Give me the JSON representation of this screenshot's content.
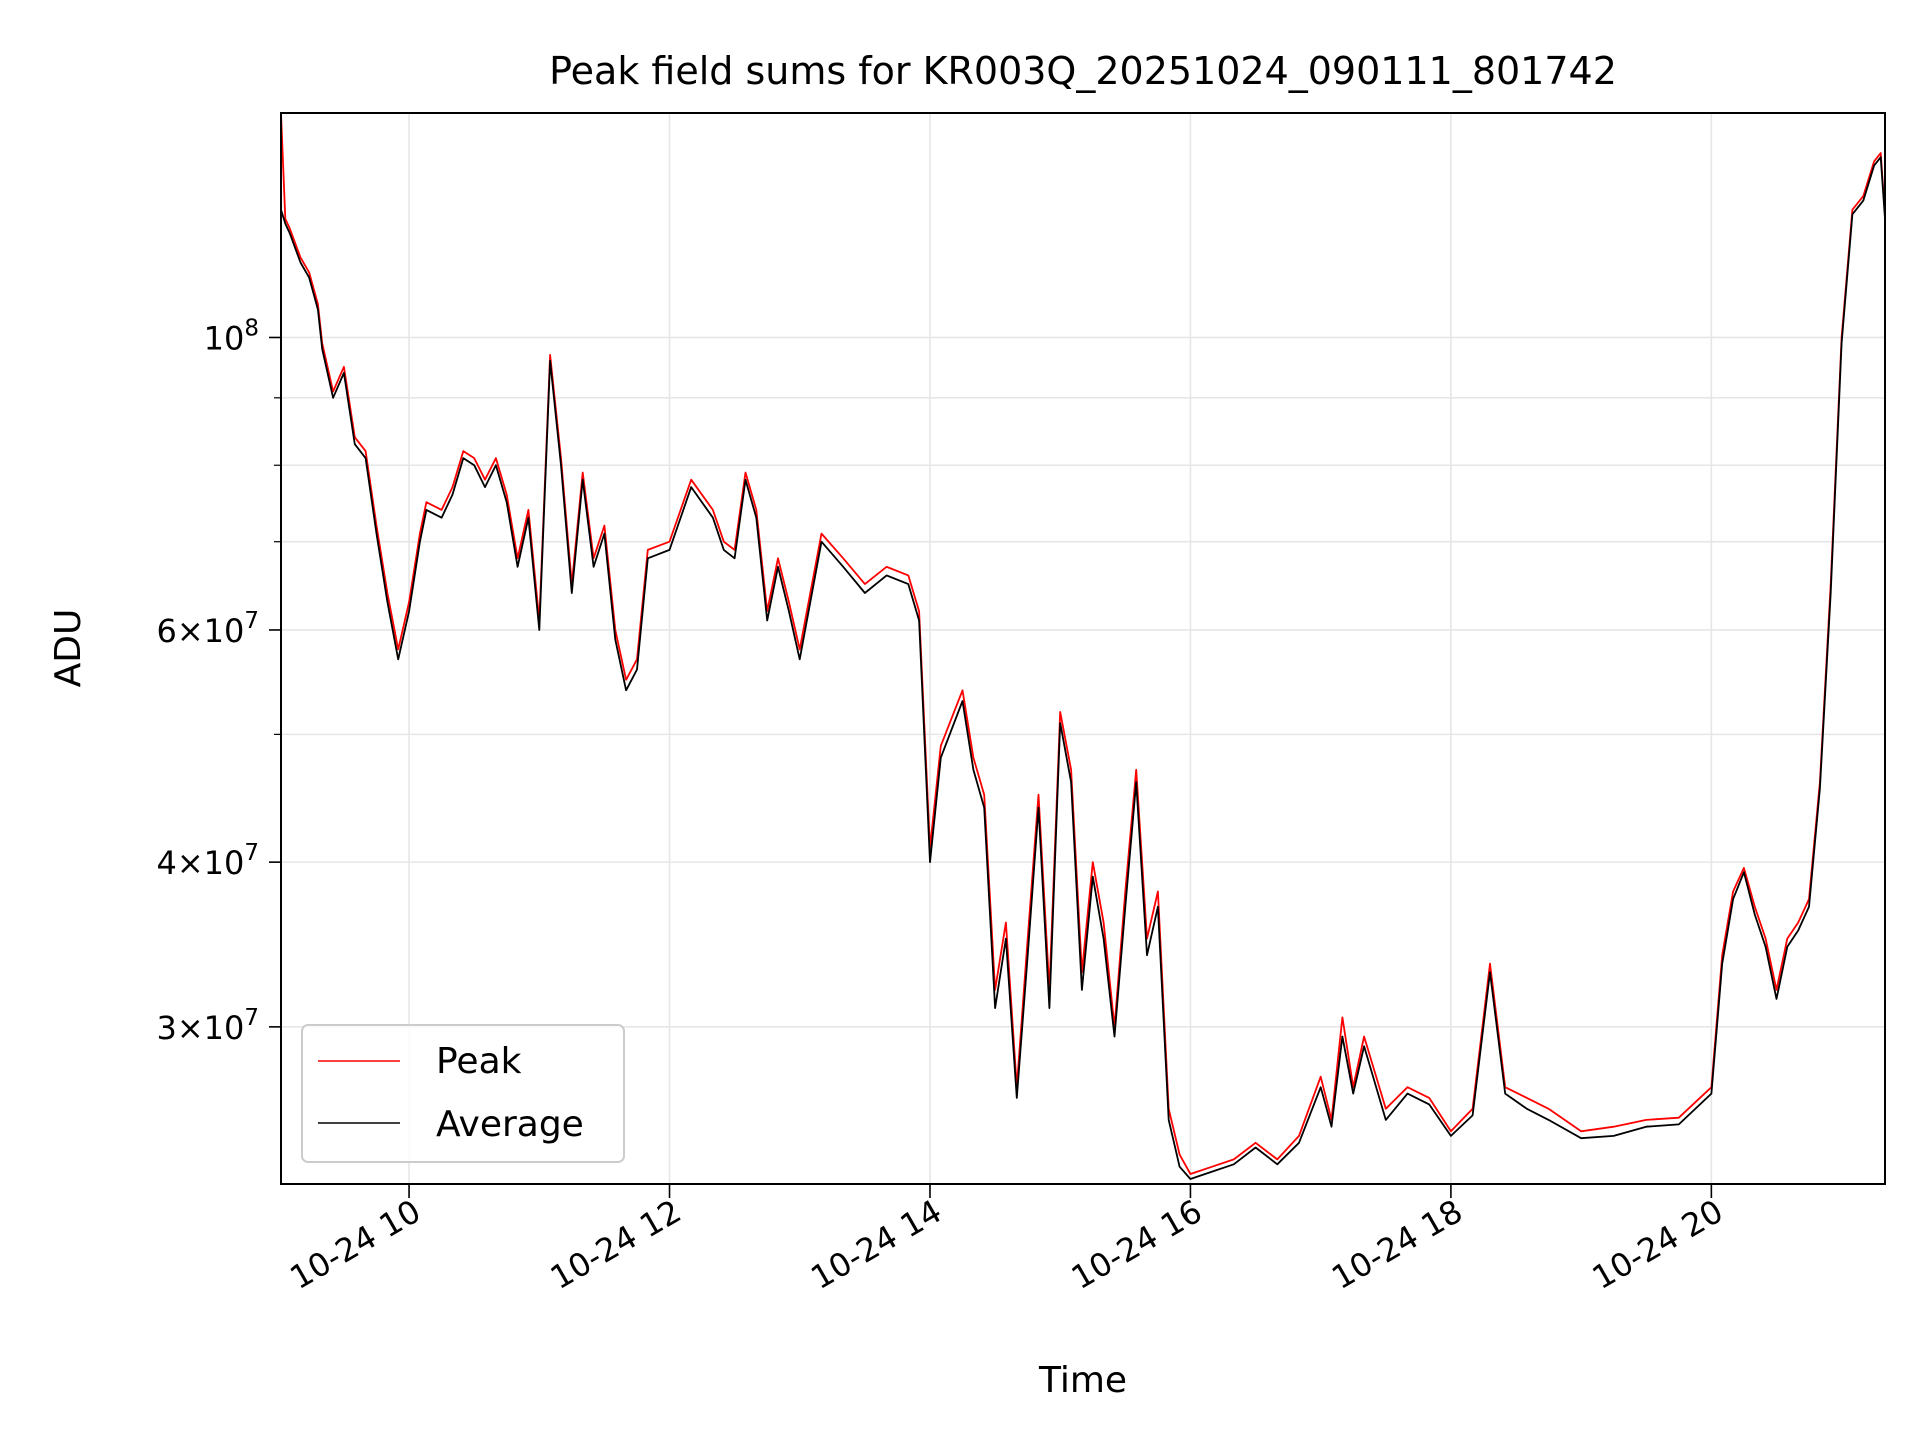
{
  "chart_data": {
    "type": "line",
    "title": "Peak field sums for KR003Q_20251024_090111_801742",
    "xlabel": "Time",
    "ylabel": "ADU",
    "yscale": "log",
    "xlim": [
      "2025-10-24 09:01",
      "2025-10-24 21:20"
    ],
    "ylim": [
      22800000,
      148000000
    ],
    "grid": true,
    "legend_position": "lower-left",
    "x_ticks": [
      {
        "t": "2025-10-24 10:00",
        "label": "10-24 10"
      },
      {
        "t": "2025-10-24 12:00",
        "label": "10-24 12"
      },
      {
        "t": "2025-10-24 14:00",
        "label": "10-24 14"
      },
      {
        "t": "2025-10-24 16:00",
        "label": "10-24 16"
      },
      {
        "t": "2025-10-24 18:00",
        "label": "10-24 18"
      },
      {
        "t": "2025-10-24 20:00",
        "label": "10-24 20"
      }
    ],
    "y_ticks": [
      {
        "value": 30000000,
        "mantissa": "3",
        "exponent": "7"
      },
      {
        "value": 40000000,
        "mantissa": "4",
        "exponent": "7"
      },
      {
        "value": 60000000,
        "mantissa": "6",
        "exponent": "7"
      },
      {
        "value": 100000000,
        "mantissa": "",
        "exponent": "8"
      }
    ],
    "y_minor_ticks": [
      50000000,
      70000000,
      80000000,
      90000000
    ],
    "series": [
      {
        "name": "Peak",
        "color": "#ff0000",
        "x": [
          "2025-10-24 09:01",
          "2025-10-24 09:03",
          "2025-10-24 09:05",
          "2025-10-24 09:10",
          "2025-10-24 09:14",
          "2025-10-24 09:18",
          "2025-10-24 09:20",
          "2025-10-24 09:25",
          "2025-10-24 09:30",
          "2025-10-24 09:35",
          "2025-10-24 09:40",
          "2025-10-24 09:45",
          "2025-10-24 09:50",
          "2025-10-24 09:55",
          "2025-10-24 10:00",
          "2025-10-24 10:05",
          "2025-10-24 10:08",
          "2025-10-24 10:15",
          "2025-10-24 10:20",
          "2025-10-24 10:25",
          "2025-10-24 10:30",
          "2025-10-24 10:35",
          "2025-10-24 10:40",
          "2025-10-24 10:45",
          "2025-10-24 10:50",
          "2025-10-24 10:55",
          "2025-10-24 11:00",
          "2025-10-24 11:05",
          "2025-10-24 11:10",
          "2025-10-24 11:15",
          "2025-10-24 11:20",
          "2025-10-24 11:25",
          "2025-10-24 11:30",
          "2025-10-24 11:35",
          "2025-10-24 11:40",
          "2025-10-24 11:45",
          "2025-10-24 11:50",
          "2025-10-24 12:00",
          "2025-10-24 12:10",
          "2025-10-24 12:20",
          "2025-10-24 12:25",
          "2025-10-24 12:30",
          "2025-10-24 12:35",
          "2025-10-24 12:40",
          "2025-10-24 12:45",
          "2025-10-24 12:50",
          "2025-10-24 12:55",
          "2025-10-24 13:00",
          "2025-10-24 13:10",
          "2025-10-24 13:20",
          "2025-10-24 13:30",
          "2025-10-24 13:40",
          "2025-10-24 13:50",
          "2025-10-24 13:55",
          "2025-10-24 14:00",
          "2025-10-24 14:05",
          "2025-10-24 14:15",
          "2025-10-24 14:20",
          "2025-10-24 14:25",
          "2025-10-24 14:30",
          "2025-10-24 14:35",
          "2025-10-24 14:40",
          "2025-10-24 14:45",
          "2025-10-24 14:50",
          "2025-10-24 14:55",
          "2025-10-24 15:00",
          "2025-10-24 15:05",
          "2025-10-24 15:10",
          "2025-10-24 15:15",
          "2025-10-24 15:20",
          "2025-10-24 15:25",
          "2025-10-24 15:30",
          "2025-10-24 15:35",
          "2025-10-24 15:40",
          "2025-10-24 15:45",
          "2025-10-24 15:50",
          "2025-10-24 15:55",
          "2025-10-24 16:00",
          "2025-10-24 16:10",
          "2025-10-24 16:20",
          "2025-10-24 16:30",
          "2025-10-24 16:40",
          "2025-10-24 16:50",
          "2025-10-24 17:00",
          "2025-10-24 17:05",
          "2025-10-24 17:10",
          "2025-10-24 17:15",
          "2025-10-24 17:20",
          "2025-10-24 17:30",
          "2025-10-24 17:40",
          "2025-10-24 17:50",
          "2025-10-24 18:00",
          "2025-10-24 18:10",
          "2025-10-24 18:18",
          "2025-10-24 18:25",
          "2025-10-24 18:35",
          "2025-10-24 18:45",
          "2025-10-24 19:00",
          "2025-10-24 19:15",
          "2025-10-24 19:30",
          "2025-10-24 19:45",
          "2025-10-24 20:00",
          "2025-10-24 20:05",
          "2025-10-24 20:10",
          "2025-10-24 20:15",
          "2025-10-24 20:20",
          "2025-10-24 20:25",
          "2025-10-24 20:30",
          "2025-10-24 20:35",
          "2025-10-24 20:40",
          "2025-10-24 20:45",
          "2025-10-24 20:50",
          "2025-10-24 20:55",
          "2025-10-24 21:00",
          "2025-10-24 21:05",
          "2025-10-24 21:10",
          "2025-10-24 21:15",
          "2025-10-24 21:18",
          "2025-10-24 21:20"
        ],
        "values": [
          148000000,
          123000000,
          121000000,
          115000000,
          112000000,
          106000000,
          99000000,
          91000000,
          95000000,
          84000000,
          82000000,
          72000000,
          64000000,
          58000000,
          63000000,
          71000000,
          75000000,
          74000000,
          77000000,
          82000000,
          81000000,
          78000000,
          81000000,
          76000000,
          68000000,
          74000000,
          61000000,
          97000000,
          81000000,
          65000000,
          79000000,
          68000000,
          72000000,
          60000000,
          55000000,
          57000000,
          69000000,
          70000000,
          78000000,
          74000000,
          70000000,
          69000000,
          79000000,
          74000000,
          62000000,
          68000000,
          63000000,
          58000000,
          71000000,
          68000000,
          65000000,
          67000000,
          66000000,
          62000000,
          41000000,
          49000000,
          54000000,
          48000000,
          45000000,
          32000000,
          36000000,
          27000000,
          35000000,
          45000000,
          32000000,
          52000000,
          47000000,
          33000000,
          40000000,
          36000000,
          30000000,
          38000000,
          47000000,
          35000000,
          38000000,
          26000000,
          24000000,
          23200000,
          23500000,
          23800000,
          24500000,
          23800000,
          24800000,
          27500000,
          25500000,
          30500000,
          27000000,
          29500000,
          26000000,
          27000000,
          26500000,
          25000000,
          26000000,
          33500000,
          27000000,
          26500000,
          26000000,
          25000000,
          25200000,
          25500000,
          25600000,
          27000000,
          34000000,
          38000000,
          39600000,
          37000000,
          35000000,
          32000000,
          35000000,
          36000000,
          37500000,
          46000000,
          65000000,
          100000000,
          125000000,
          128000000,
          136000000,
          138000000,
          124000000
        ]
      },
      {
        "name": "Average",
        "color": "#000000",
        "x": [
          "2025-10-24 09:01",
          "2025-10-24 09:03",
          "2025-10-24 09:05",
          "2025-10-24 09:10",
          "2025-10-24 09:14",
          "2025-10-24 09:18",
          "2025-10-24 09:20",
          "2025-10-24 09:25",
          "2025-10-24 09:30",
          "2025-10-24 09:35",
          "2025-10-24 09:40",
          "2025-10-24 09:45",
          "2025-10-24 09:50",
          "2025-10-24 09:55",
          "2025-10-24 10:00",
          "2025-10-24 10:05",
          "2025-10-24 10:08",
          "2025-10-24 10:15",
          "2025-10-24 10:20",
          "2025-10-24 10:25",
          "2025-10-24 10:30",
          "2025-10-24 10:35",
          "2025-10-24 10:40",
          "2025-10-24 10:45",
          "2025-10-24 10:50",
          "2025-10-24 10:55",
          "2025-10-24 11:00",
          "2025-10-24 11:05",
          "2025-10-24 11:10",
          "2025-10-24 11:15",
          "2025-10-24 11:20",
          "2025-10-24 11:25",
          "2025-10-24 11:30",
          "2025-10-24 11:35",
          "2025-10-24 11:40",
          "2025-10-24 11:45",
          "2025-10-24 11:50",
          "2025-10-24 12:00",
          "2025-10-24 12:10",
          "2025-10-24 12:20",
          "2025-10-24 12:25",
          "2025-10-24 12:30",
          "2025-10-24 12:35",
          "2025-10-24 12:40",
          "2025-10-24 12:45",
          "2025-10-24 12:50",
          "2025-10-24 12:55",
          "2025-10-24 13:00",
          "2025-10-24 13:10",
          "2025-10-24 13:20",
          "2025-10-24 13:30",
          "2025-10-24 13:40",
          "2025-10-24 13:50",
          "2025-10-24 13:55",
          "2025-10-24 14:00",
          "2025-10-24 14:05",
          "2025-10-24 14:15",
          "2025-10-24 14:20",
          "2025-10-24 14:25",
          "2025-10-24 14:30",
          "2025-10-24 14:35",
          "2025-10-24 14:40",
          "2025-10-24 14:45",
          "2025-10-24 14:50",
          "2025-10-24 14:55",
          "2025-10-24 15:00",
          "2025-10-24 15:05",
          "2025-10-24 15:10",
          "2025-10-24 15:15",
          "2025-10-24 15:20",
          "2025-10-24 15:25",
          "2025-10-24 15:30",
          "2025-10-24 15:35",
          "2025-10-24 15:40",
          "2025-10-24 15:45",
          "2025-10-24 15:50",
          "2025-10-24 15:55",
          "2025-10-24 16:00",
          "2025-10-24 16:10",
          "2025-10-24 16:20",
          "2025-10-24 16:30",
          "2025-10-24 16:40",
          "2025-10-24 16:50",
          "2025-10-24 17:00",
          "2025-10-24 17:05",
          "2025-10-24 17:10",
          "2025-10-24 17:15",
          "2025-10-24 17:20",
          "2025-10-24 17:30",
          "2025-10-24 17:40",
          "2025-10-24 17:50",
          "2025-10-24 18:00",
          "2025-10-24 18:10",
          "2025-10-24 18:18",
          "2025-10-24 18:25",
          "2025-10-24 18:35",
          "2025-10-24 18:45",
          "2025-10-24 19:00",
          "2025-10-24 19:15",
          "2025-10-24 19:30",
          "2025-10-24 19:45",
          "2025-10-24 20:00",
          "2025-10-24 20:05",
          "2025-10-24 20:10",
          "2025-10-24 20:15",
          "2025-10-24 20:20",
          "2025-10-24 20:25",
          "2025-10-24 20:30",
          "2025-10-24 20:35",
          "2025-10-24 20:40",
          "2025-10-24 20:45",
          "2025-10-24 20:50",
          "2025-10-24 20:55",
          "2025-10-24 21:00",
          "2025-10-24 21:05",
          "2025-10-24 21:10",
          "2025-10-24 21:15",
          "2025-10-24 21:18",
          "2025-10-24 21:20"
        ],
        "values": [
          125000000,
          122000000,
          120000000,
          114000000,
          111000000,
          105000000,
          98000000,
          90000000,
          94000000,
          83000000,
          81000000,
          71000000,
          63000000,
          57000000,
          62000000,
          70000000,
          74000000,
          73000000,
          76000000,
          81000000,
          80000000,
          77000000,
          80000000,
          75000000,
          67000000,
          73000000,
          60000000,
          96000000,
          80000000,
          64000000,
          78000000,
          67000000,
          71000000,
          59000000,
          54000000,
          56000000,
          68000000,
          69000000,
          77000000,
          73000000,
          69000000,
          68000000,
          78000000,
          73000000,
          61000000,
          67000000,
          62000000,
          57000000,
          70000000,
          67000000,
          64000000,
          66000000,
          65000000,
          61000000,
          40000000,
          48000000,
          53000000,
          47000000,
          44000000,
          31000000,
          35000000,
          26500000,
          34000000,
          44000000,
          31000000,
          51000000,
          46000000,
          32000000,
          39000000,
          35000000,
          29500000,
          37000000,
          46000000,
          34000000,
          37000000,
          25500000,
          23500000,
          23000000,
          23300000,
          23600000,
          24300000,
          23600000,
          24500000,
          27000000,
          25200000,
          29500000,
          26700000,
          29000000,
          25500000,
          26700000,
          26200000,
          24800000,
          25700000,
          33000000,
          26700000,
          26000000,
          25500000,
          24700000,
          24800000,
          25200000,
          25300000,
          26700000,
          33500000,
          37500000,
          39300000,
          36500000,
          34500000,
          31500000,
          34500000,
          35500000,
          37000000,
          45500000,
          64000000,
          99000000,
          124000000,
          127000000,
          135000000,
          137000000,
          123000000
        ]
      }
    ]
  }
}
